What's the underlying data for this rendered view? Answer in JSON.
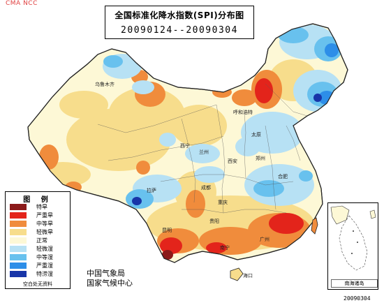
{
  "watermark": "CMA NCC",
  "title": {
    "main": "全国标准化降水指数(SPI)分布图",
    "date_range": "20090124--20090304"
  },
  "legend": {
    "title": "图 例",
    "items": [
      {
        "label": "特旱",
        "color": "#8b1a1a"
      },
      {
        "label": "严重旱",
        "color": "#e3241b"
      },
      {
        "label": "中等旱",
        "color": "#f08c3c"
      },
      {
        "label": "轻微旱",
        "color": "#f7dd8c"
      },
      {
        "label": "正常",
        "color": "#fdf8d6"
      },
      {
        "label": "轻微湿",
        "color": "#b7e1f4"
      },
      {
        "label": "中等湿",
        "color": "#68c1ee"
      },
      {
        "label": "严重湿",
        "color": "#2d8ee8"
      },
      {
        "label": "特涝湿",
        "color": "#1835a8"
      }
    ],
    "footer": "空白处无资料"
  },
  "agency": {
    "line1": "中国气象局",
    "line2": "国家气候中心"
  },
  "inset": {
    "label": "南海诸岛"
  },
  "datestamp": "20090304",
  "cities": [
    {
      "name": "乌鲁木齐"
    },
    {
      "name": "呼和浩特"
    },
    {
      "name": "太原"
    },
    {
      "name": "西宁"
    },
    {
      "name": "兰州"
    },
    {
      "name": "西安"
    },
    {
      "name": "郑州"
    },
    {
      "name": "合肥"
    },
    {
      "name": "拉萨"
    },
    {
      "name": "成都"
    },
    {
      "name": "重庆"
    },
    {
      "name": "贵阳"
    },
    {
      "name": "昆明"
    },
    {
      "name": "南宁"
    },
    {
      "name": "广州"
    },
    {
      "name": "海口"
    }
  ]
}
